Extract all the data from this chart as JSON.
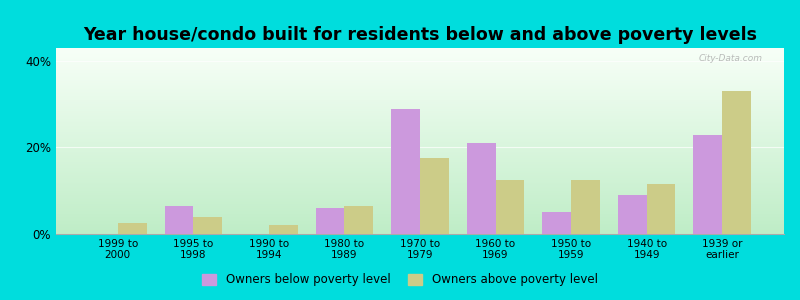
{
  "title": "Year house/condo built for residents below and above poverty levels",
  "categories": [
    "1999 to\n2000",
    "1995 to\n1998",
    "1990 to\n1994",
    "1980 to\n1989",
    "1970 to\n1979",
    "1960 to\n1969",
    "1950 to\n1959",
    "1940 to\n1949",
    "1939 or\nearlier"
  ],
  "below_poverty": [
    0.0,
    6.5,
    0.0,
    6.0,
    29.0,
    21.0,
    5.0,
    9.0,
    23.0
  ],
  "above_poverty": [
    2.5,
    4.0,
    2.0,
    6.5,
    17.5,
    12.5,
    12.5,
    11.5,
    33.0
  ],
  "below_color": "#cc99dd",
  "above_color": "#cccc88",
  "background_top": "#f5fff5",
  "background_bottom": "#aaeebb",
  "outer_bg": "#00dddd",
  "ylim": [
    0,
    43
  ],
  "yticks": [
    0,
    20,
    40
  ],
  "ytick_labels": [
    "0%",
    "20%",
    "40%"
  ],
  "legend_below": "Owners below poverty level",
  "legend_above": "Owners above poverty level",
  "title_fontsize": 12.5,
  "bar_width": 0.38
}
